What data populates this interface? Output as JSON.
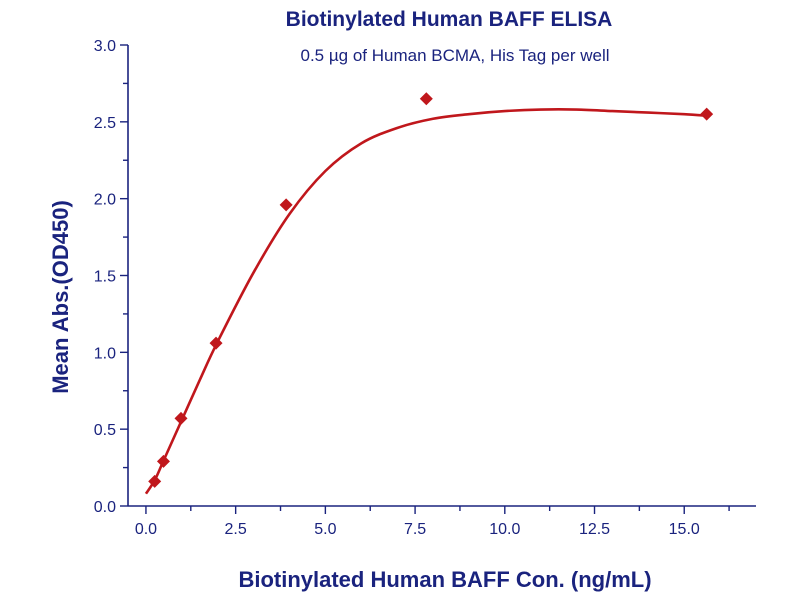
{
  "chart_data": {
    "type": "scatter",
    "title": "Biotinylated Human BAFF ELISA",
    "subtitle": "0.5 µg of Human BCMA, His Tag per well",
    "xlabel": "Biotinylated Human BAFF Con. (ng/mL)",
    "ylabel": "Mean Abs.(OD450)",
    "xlim": [
      -0.5,
      17
    ],
    "ylim": [
      0,
      3.0
    ],
    "xticks": [
      "0.0",
      "2.5",
      "5.0",
      "7.5",
      "10.0",
      "12.5",
      "15.0"
    ],
    "yticks": [
      "0.0",
      "0.5",
      "1.0",
      "1.5",
      "2.0",
      "2.5",
      "3.0"
    ],
    "grid": false,
    "colors": {
      "axis": "#1a237e",
      "series": "#c0171c"
    },
    "series": [
      {
        "marker": "diamond",
        "x": [
          0.244,
          0.488,
          0.977,
          1.953,
          3.906,
          7.813,
          15.625
        ],
        "y": [
          0.16,
          0.29,
          0.57,
          1.06,
          1.96,
          2.65,
          2.55
        ]
      }
    ],
    "fit_curve": {
      "x": [
        0,
        0.25,
        0.5,
        1,
        1.5,
        2,
        3,
        4,
        5,
        6,
        7,
        8,
        9,
        10,
        11,
        12,
        13,
        14,
        15,
        15.625
      ],
      "y": [
        0.08,
        0.17,
        0.3,
        0.56,
        0.82,
        1.07,
        1.52,
        1.9,
        2.18,
        2.36,
        2.46,
        2.52,
        2.55,
        2.57,
        2.58,
        2.58,
        2.57,
        2.56,
        2.55,
        2.54
      ]
    }
  }
}
